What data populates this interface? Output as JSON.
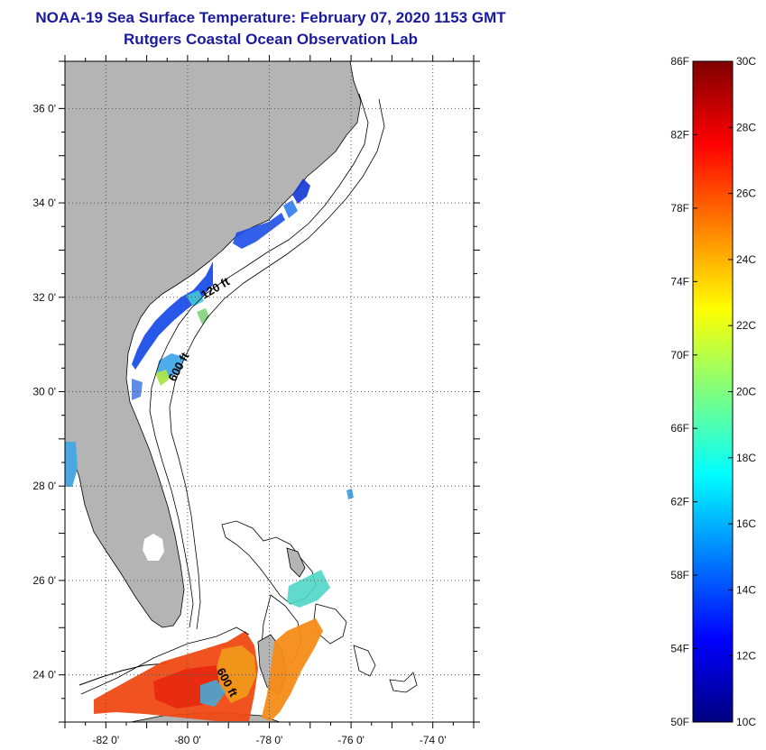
{
  "header": {
    "title": "NOAA-19 Sea Surface Temperature:  February 07, 2020 1153 GMT",
    "subtitle": "Rutgers Coastal Ocean Observation Lab"
  },
  "map": {
    "lon_range": [
      -83,
      -73
    ],
    "lat_range": [
      23,
      37
    ],
    "lon_ticks": [
      {
        "value": -82,
        "label": "-82 0'"
      },
      {
        "value": -80,
        "label": "-80 0'"
      },
      {
        "value": -78,
        "label": "-78 0'"
      },
      {
        "value": -76,
        "label": "-76 0'"
      },
      {
        "value": -74,
        "label": "-74 0'"
      }
    ],
    "lat_ticks": [
      {
        "value": 36,
        "label": "36 0'"
      },
      {
        "value": 34,
        "label": "34 0'"
      },
      {
        "value": 32,
        "label": "32 0'"
      },
      {
        "value": 30,
        "label": "30 0'"
      },
      {
        "value": 28,
        "label": "28 0'"
      },
      {
        "value": 26,
        "label": "26 0'"
      },
      {
        "value": 24,
        "label": "24 0'"
      }
    ],
    "contour_labels": {
      "shelf_upper": "120 ft",
      "slope_upper": "600 ft",
      "slope_lower": "600 ft"
    },
    "land_color": "#b4b4b4",
    "grid": true
  },
  "colorbar": {
    "fahrenheit_labels": [
      "86F",
      "82F",
      "78F",
      "74F",
      "70F",
      "66F",
      "62F",
      "58F",
      "54F",
      "50F"
    ],
    "celsius_labels": [
      "30C",
      "28C",
      "26C",
      "24C",
      "22C",
      "20C",
      "18C",
      "16C",
      "14C",
      "12C",
      "10C"
    ],
    "range_c": [
      10,
      30
    ],
    "range_f": [
      50,
      86
    ],
    "colors": [
      "#00007f",
      "#0000ff",
      "#007fff",
      "#00ffff",
      "#7fff7f",
      "#ffff00",
      "#ff7f00",
      "#ff0000",
      "#7f0000"
    ]
  }
}
